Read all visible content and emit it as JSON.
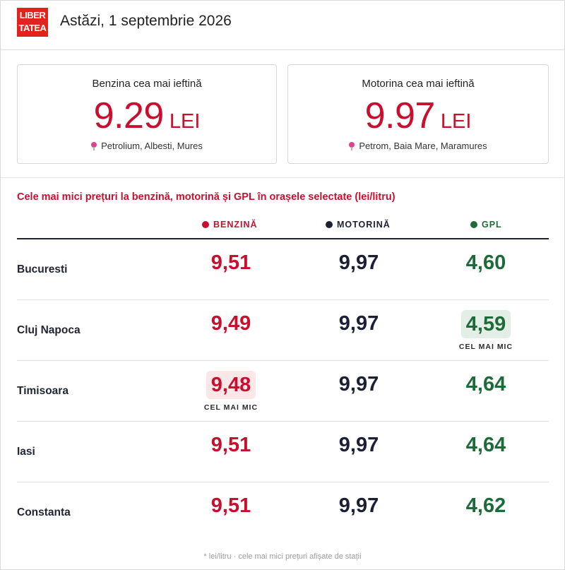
{
  "brand": {
    "logo_line1": "LIBER",
    "logo_line2": "TATEA"
  },
  "header": {
    "title": "Astăzi, 1 septembrie 2026"
  },
  "cards": [
    {
      "label": "Benzina cea mai ieftină",
      "price": "9.29",
      "currency": "LEI",
      "location": "Petrolium, Albesti, Mures"
    },
    {
      "label": "Motorina cea mai ieftină",
      "price": "9.97",
      "currency": "LEI",
      "location": "Petrom, Baia Mare, Maramures"
    }
  ],
  "table": {
    "title": "Cele mai mici prețuri la benzină, motorină și GPL în orașele selectate (lei/litru)",
    "headers": {
      "benzina": "BENZINĂ",
      "motorina": "MOTORINĂ",
      "gpl": "GPL"
    },
    "lowest_tag": "CEL MAI MIC",
    "rows": [
      {
        "city": "Bucuresti",
        "benzina": "9,51",
        "motorina": "9,97",
        "gpl": "4,60",
        "lowest": ""
      },
      {
        "city": "Cluj Napoca",
        "benzina": "9,49",
        "motorina": "9,97",
        "gpl": "4,59",
        "lowest": "gpl"
      },
      {
        "city": "Timisoara",
        "benzina": "9,48",
        "motorina": "9,97",
        "gpl": "4,64",
        "lowest": "benzina"
      },
      {
        "city": "Iasi",
        "benzina": "9,51",
        "motorina": "9,97",
        "gpl": "4,64",
        "lowest": ""
      },
      {
        "city": "Constanta",
        "benzina": "9,51",
        "motorina": "9,97",
        "gpl": "4,62",
        "lowest": ""
      }
    ]
  },
  "footnote": "* lei/litru · cele mai mici prețuri afișate de stații",
  "colors": {
    "benzina": "#c8102e",
    "motorina": "#1c2035",
    "gpl": "#1e6b3a",
    "brand": "#e3231b"
  }
}
